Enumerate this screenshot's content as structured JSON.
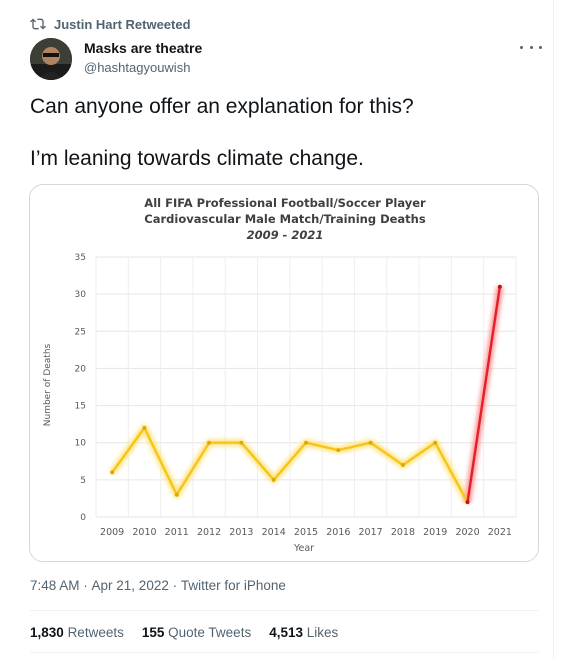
{
  "retweet": {
    "label": "Justin Hart Retweeted"
  },
  "author": {
    "name": "Masks are theatre",
    "handle": "@hashtagyouwish"
  },
  "tweet": {
    "line1": "Can anyone offer an explanation for this?",
    "line2": "I’m leaning towards climate change."
  },
  "meta": {
    "time": "7:48 AM",
    "sep": " · ",
    "date": "Apr 21, 2022",
    "source": "Twitter for iPhone"
  },
  "stats": [
    {
      "count": "1,830",
      "label": "Retweets"
    },
    {
      "count": "155",
      "label": "Quote Tweets"
    },
    {
      "count": "4,513",
      "label": "Likes"
    }
  ],
  "colors": {
    "yellow_line": "#f5c518",
    "red_line": "#e0202a",
    "text_secondary": "#536471"
  },
  "icons": {
    "retweet": "retweet-icon",
    "more": "more-icon"
  },
  "chart_data": {
    "type": "line",
    "title": "All FIFA Professional Football/Soccer Player",
    "subtitle": "Cardiovascular Male Match/Training Deaths",
    "subtitle2": "2009 - 2021",
    "xlabel": "Year",
    "ylabel": "Number of Deaths",
    "ylim": [
      0,
      35
    ],
    "yticks": [
      0,
      5,
      10,
      15,
      20,
      25,
      30,
      35
    ],
    "grid": true,
    "x": [
      "2009",
      "2010",
      "2011",
      "2012",
      "2013",
      "2014",
      "2015",
      "2016",
      "2017",
      "2018",
      "2019",
      "2020",
      "2021"
    ],
    "series": [
      {
        "values": [
          6,
          12,
          3,
          10,
          10,
          5,
          10,
          9,
          10,
          7,
          10,
          2,
          31
        ]
      }
    ]
  }
}
